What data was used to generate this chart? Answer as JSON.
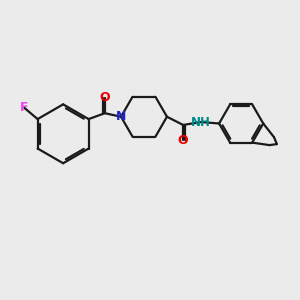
{
  "background_color": "#ebebeb",
  "bond_color": "#1a1a1a",
  "atom_colors": {
    "F": "#ee44ee",
    "O": "#ee0000",
    "N": "#2222cc",
    "NH": "#008888",
    "C": "#1a1a1a"
  },
  "figsize": [
    3.0,
    3.0
  ],
  "dpi": 100,
  "xlim": [
    0,
    10
  ],
  "ylim": [
    0,
    10
  ]
}
